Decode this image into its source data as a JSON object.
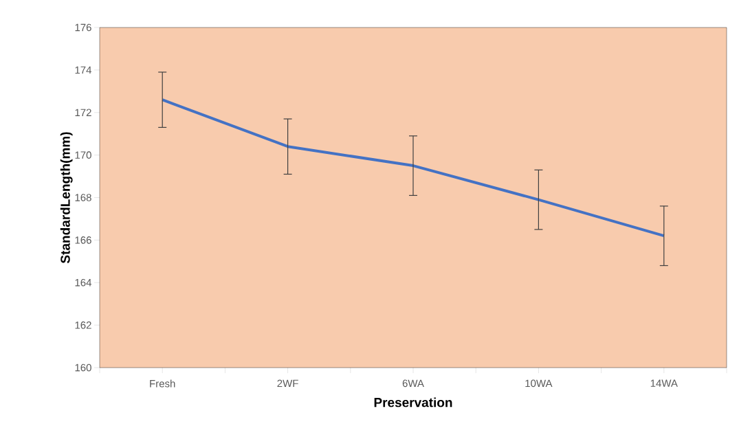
{
  "chart_data": {
    "type": "line",
    "xlabel": "Preservation",
    "ylabel": "StandardLength(mm)",
    "categories": [
      "Fresh",
      "2WF",
      "6WA",
      "10WA",
      "14WA"
    ],
    "series": [
      {
        "color": "#4472c4",
        "values": [
          172.6,
          170.4,
          169.5,
          167.9,
          166.2
        ],
        "errors": [
          1.3,
          1.3,
          1.4,
          1.4,
          1.4
        ]
      }
    ],
    "ylim": [
      160,
      176
    ],
    "yticks": [
      160,
      162,
      164,
      166,
      168,
      170,
      172,
      174,
      176
    ],
    "marker": "none",
    "line_style": "solid"
  }
}
